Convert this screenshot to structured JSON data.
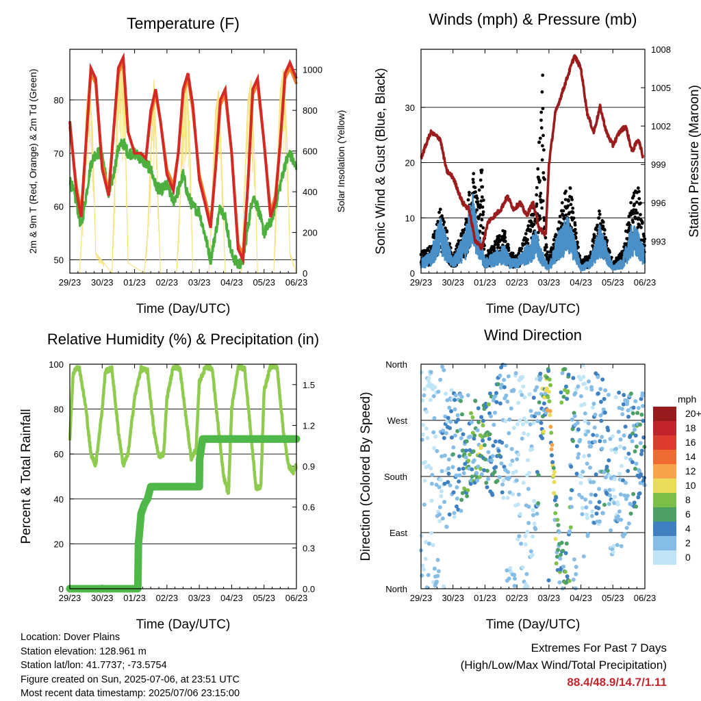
{
  "info": {
    "location": "Location: Dover Plains",
    "elevation": "Station elevation: 128.961 m",
    "latlon": "Station lat/lon: 41.7737; -73.5754",
    "created": "Figure created on Sun, 2025-07-06, at 23:51 UTC",
    "recent": "Most recent data timestamp: 2025/07/06 23:15:00"
  },
  "extremes": {
    "line1": "Extremes For Past 7 Days",
    "line2": "(High/Low/Max Wind/Total Precipitation)",
    "values": "88.4/48.9/14.7/1.11"
  },
  "colors": {
    "temp2m": "#d42a25",
    "temp9m": "#ee7f2a",
    "dewpoint": "#4caf3e",
    "solar": "#f5e17a",
    "gust": "#000000",
    "wind": "#4a90c8",
    "pressure": "#9b1c1c",
    "rh": "#8fcb4e",
    "precip": "#4fb848"
  },
  "chart_data": [
    {
      "type": "line",
      "title": "Temperature (F)",
      "xlabel": "Time (Day/UTC)",
      "ylabel": "2m & 9m T (Red, Orange) & 2m Td (Green)",
      "ylabel_right": "Solar Insolation (Yellow)",
      "x_ticks": [
        "29/23",
        "30/23",
        "01/23",
        "02/23",
        "03/23",
        "04/23",
        "05/23",
        "06/23"
      ],
      "ylim": [
        47.5,
        89.5
      ],
      "yticks": [
        50,
        60,
        70,
        80
      ],
      "ylim_right": [
        0,
        1100
      ],
      "yticks_right": [
        0,
        200,
        400,
        600,
        800,
        1000
      ],
      "series": [
        {
          "name": "2m T",
          "axis": "left",
          "x": [
            0,
            0.2,
            0.35,
            0.5,
            0.65,
            0.8,
            1,
            1.2,
            1.35,
            1.5,
            1.65,
            1.8,
            2,
            2.2,
            2.35,
            2.5,
            2.65,
            2.8,
            3,
            3.2,
            3.35,
            3.5,
            3.65,
            3.8,
            4,
            4.2,
            4.35,
            4.5,
            4.65,
            4.8,
            5,
            5.2,
            5.35,
            5.5,
            5.65,
            5.8,
            6,
            6.2,
            6.35,
            6.5,
            6.65,
            6.8,
            7
          ],
          "values": [
            76,
            63,
            58,
            72,
            86,
            84,
            67,
            62,
            74,
            86,
            88,
            74,
            70,
            70,
            69,
            78,
            82,
            76,
            66,
            63,
            70,
            82,
            85,
            79,
            65,
            60,
            56,
            67,
            80,
            82,
            70,
            52,
            50,
            64,
            82,
            84,
            72,
            58,
            61,
            72,
            85,
            87,
            84
          ]
        },
        {
          "name": "9m T",
          "axis": "left",
          "x": [
            0,
            0.2,
            0.35,
            0.5,
            0.65,
            0.8,
            1,
            1.2,
            1.35,
            1.5,
            1.65,
            1.8,
            2,
            2.2,
            2.35,
            2.5,
            2.65,
            2.8,
            3,
            3.2,
            3.35,
            3.5,
            3.65,
            3.8,
            4,
            4.2,
            4.35,
            4.5,
            4.65,
            4.8,
            5,
            5.2,
            5.35,
            5.5,
            5.65,
            5.8,
            6,
            6.2,
            6.35,
            6.5,
            6.65,
            6.8,
            7
          ],
          "values": [
            75,
            64,
            59,
            72,
            85,
            83,
            68,
            63,
            74,
            85,
            87,
            74,
            70,
            70,
            69,
            77,
            81,
            76,
            67,
            64,
            70,
            81,
            84,
            78,
            66,
            61,
            57,
            67,
            79,
            81,
            70,
            53,
            51,
            64,
            81,
            83,
            72,
            59,
            62,
            72,
            84,
            86,
            83
          ]
        },
        {
          "name": "2m Td",
          "axis": "left",
          "x": [
            0,
            0.2,
            0.35,
            0.5,
            0.65,
            0.8,
            1,
            1.2,
            1.35,
            1.5,
            1.65,
            1.8,
            2,
            2.2,
            2.35,
            2.5,
            2.65,
            2.8,
            3,
            3.2,
            3.35,
            3.5,
            3.65,
            3.8,
            4,
            4.2,
            4.35,
            4.5,
            4.65,
            4.8,
            5,
            5.2,
            5.35,
            5.5,
            5.65,
            5.8,
            6,
            6.2,
            6.35,
            6.5,
            6.65,
            6.8,
            7
          ],
          "values": [
            65,
            61,
            56,
            62,
            68,
            70,
            70,
            62,
            66,
            71,
            72,
            70,
            70,
            69,
            68,
            67,
            64,
            63,
            64,
            61,
            63,
            66,
            62,
            60,
            59,
            54,
            50,
            55,
            60,
            58,
            51,
            49,
            50,
            56,
            62,
            60,
            55,
            57,
            60,
            64,
            68,
            70,
            67
          ]
        },
        {
          "name": "Solar",
          "axis": "right",
          "x": [
            0,
            0.3,
            0.4,
            0.5,
            0.6,
            0.7,
            0.8,
            1.3,
            1.4,
            1.5,
            1.6,
            1.7,
            1.8,
            2.3,
            2.4,
            2.5,
            2.6,
            2.7,
            2.8,
            3.3,
            3.4,
            3.5,
            3.6,
            3.7,
            3.8,
            4.3,
            4.4,
            4.5,
            4.6,
            4.7,
            4.8,
            5.3,
            5.4,
            5.5,
            5.6,
            5.7,
            5.8,
            6.3,
            6.4,
            6.5,
            6.6,
            6.7,
            6.8,
            7
          ],
          "values": [
            0,
            0,
            300,
            800,
            950,
            700,
            100,
            0,
            500,
            1000,
            1030,
            800,
            50,
            0,
            200,
            600,
            950,
            500,
            0,
            0,
            350,
            850,
            960,
            700,
            0,
            0,
            400,
            800,
            900,
            500,
            0,
            0,
            450,
            850,
            950,
            600,
            0,
            0,
            500,
            900,
            1000,
            700,
            100,
            0
          ]
        }
      ]
    },
    {
      "type": "scatter",
      "title": "Winds (mph) & Pressure (mb)",
      "xlabel": "Time (Day/UTC)",
      "ylabel": "Sonic Wind & Gust (Blue, Black)",
      "ylabel_right": "Station Pressure (Maroon)",
      "x_ticks": [
        "29/23",
        "30/23",
        "01/23",
        "02/23",
        "03/23",
        "04/23",
        "05/23",
        "06/23"
      ],
      "ylim": [
        0,
        40.5
      ],
      "yticks": [
        0,
        10,
        20,
        30
      ],
      "ylim_right": [
        990.5,
        1008
      ],
      "yticks_right": [
        993,
        996,
        999,
        1002,
        1005,
        1008
      ],
      "series": [
        {
          "name": "Wind",
          "axis": "left",
          "x": [
            0,
            0.3,
            0.6,
            0.8,
            1.0,
            1.4,
            1.6,
            1.8,
            2.0,
            2.3,
            2.6,
            2.8,
            3.0,
            3.3,
            3.6,
            3.8,
            4.0,
            4.3,
            4.6,
            4.8,
            5.0,
            5.3,
            5.6,
            5.8,
            6.0,
            6.3,
            6.6,
            6.8,
            7
          ],
          "values": [
            2,
            3,
            8,
            5,
            2,
            6,
            12,
            6,
            2,
            3,
            4,
            2,
            2,
            4,
            6,
            3,
            1,
            6,
            8,
            5,
            1,
            2,
            7,
            4,
            1,
            2,
            7,
            6,
            3
          ]
        },
        {
          "name": "Gust",
          "axis": "left",
          "x": [
            0,
            0.3,
            0.6,
            0.8,
            1.0,
            1.4,
            1.6,
            1.8,
            1.9,
            2.0,
            2.3,
            2.6,
            2.8,
            3.0,
            3.3,
            3.6,
            3.8,
            3.9,
            4.0,
            4.3,
            4.6,
            4.8,
            5.0,
            5.3,
            5.6,
            5.8,
            6.0,
            6.3,
            6.6,
            6.8,
            7
          ],
          "values": [
            4,
            5,
            12,
            8,
            3,
            10,
            20,
            12,
            27,
            3,
            6,
            8,
            4,
            3,
            8,
            13,
            38,
            6,
            3,
            9,
            19,
            10,
            2,
            4,
            12,
            7,
            2,
            4,
            14,
            16,
            6
          ]
        },
        {
          "name": "Pressure",
          "axis": "right",
          "x": [
            0,
            0.3,
            0.6,
            0.8,
            1.0,
            1.3,
            1.5,
            1.7,
            1.9,
            2.1,
            2.3,
            2.5,
            2.7,
            2.9,
            3.1,
            3.3,
            3.5,
            3.7,
            3.9,
            4.0,
            4.2,
            4.4,
            4.6,
            4.8,
            5.0,
            5.2,
            5.4,
            5.6,
            5.8,
            6.0,
            6.2,
            6.4,
            6.6,
            6.8,
            6.95
          ],
          "values": [
            999.5,
            1001.5,
            1001.0,
            998.5,
            998.0,
            996.0,
            995.5,
            993.0,
            992.5,
            994.5,
            995.0,
            995.5,
            996.5,
            995.5,
            996.0,
            995.0,
            996.0,
            994.0,
            993.5,
            999.0,
            1003.0,
            1004.5,
            1006.0,
            1007.5,
            1006.5,
            1003.0,
            1001.5,
            1003.5,
            1001.5,
            1000.5,
            1001.5,
            1002.0,
            1000.0,
            1001.0,
            999.5
          ]
        }
      ]
    },
    {
      "type": "line",
      "title": "Relative Humidity (%) & Precipitation (in)",
      "xlabel": "Time (Day/UTC)",
      "ylabel": "Percent & Total Rainfall",
      "x_ticks": [
        "29/23",
        "30/23",
        "01/23",
        "02/23",
        "03/23",
        "04/23",
        "05/23",
        "06/23"
      ],
      "ylim": [
        0,
        100
      ],
      "yticks": [
        0,
        20,
        40,
        60,
        80,
        100
      ],
      "ylim_right": [
        0,
        1.65
      ],
      "yticks_right": [
        0.0,
        0.3,
        0.6,
        0.9,
        1.2,
        1.5
      ],
      "ytick_labels_right": [
        "0.0",
        "0.3",
        "0.6",
        "0.9",
        "1.2",
        "1.5"
      ],
      "series": [
        {
          "name": "RH",
          "axis": "left",
          "x": [
            0,
            0.1,
            0.2,
            0.3,
            0.5,
            0.65,
            0.8,
            1.0,
            1.1,
            1.3,
            1.5,
            1.65,
            1.8,
            2.0,
            2.2,
            2.4,
            2.6,
            2.75,
            2.9,
            3.0,
            3.2,
            3.4,
            3.6,
            3.75,
            3.9,
            4.0,
            4.2,
            4.4,
            4.6,
            4.75,
            4.9,
            5.0,
            5.2,
            5.4,
            5.6,
            5.75,
            5.9,
            6.0,
            6.2,
            6.4,
            6.6,
            6.75,
            6.9,
            7
          ],
          "values": [
            67,
            95,
            99,
            98,
            80,
            60,
            55,
            80,
            97,
            98,
            70,
            55,
            60,
            85,
            98,
            97,
            70,
            59,
            60,
            85,
            99,
            98,
            75,
            58,
            62,
            92,
            99,
            98,
            70,
            50,
            42,
            80,
            99,
            98,
            68,
            45,
            45,
            88,
            99,
            99,
            70,
            55,
            52,
            55
          ]
        },
        {
          "name": "Precip",
          "axis": "right",
          "x": [
            0,
            2.1,
            2.12,
            2.2,
            2.3,
            2.4,
            2.5,
            2.6,
            2.7,
            4.0,
            4.01,
            4.1,
            7
          ],
          "values": [
            0,
            0,
            0.33,
            0.55,
            0.62,
            0.66,
            0.75,
            0.75,
            0.75,
            0.75,
            0.95,
            1.1,
            1.1
          ]
        }
      ]
    },
    {
      "type": "scatter",
      "title": "Wind Direction",
      "xlabel": "Time (Day/UTC)",
      "ylabel": "Direction (Colored By Speed)",
      "x_ticks": [
        "29/23",
        "30/23",
        "01/23",
        "02/23",
        "03/23",
        "04/23",
        "05/23",
        "06/23"
      ],
      "y_ticks": [
        "North",
        "East",
        "South",
        "West",
        "North"
      ],
      "legend_title": "mph",
      "legend_labels": [
        "20+",
        "18",
        "16",
        "14",
        "12",
        "10",
        "8",
        "6",
        "4",
        "2",
        "0"
      ],
      "legend_colors": [
        "#951b1c",
        "#c1242a",
        "#df3a2f",
        "#ef6b2f",
        "#f6a34a",
        "#e8dc58",
        "#7cc04a",
        "#4ca067",
        "#3f80c0",
        "#85bde6",
        "#bfe5f7"
      ],
      "series": [
        {
          "name": "Direction",
          "x": [
            0.3,
            0.9,
            1.6,
            1.9,
            2.8,
            3.3,
            3.6,
            3.8,
            4.0,
            4.3,
            4.6,
            4.8,
            5.0,
            5.8,
            6.0,
            6.8
          ],
          "values": [
            300,
            200,
            240,
            230,
            260,
            150,
            230,
            280,
            340,
            20,
            10,
            350,
            200,
            230,
            180,
            230
          ],
          "speed": [
            2,
            5,
            8,
            9,
            3,
            2,
            4,
            9,
            13,
            7,
            8,
            7,
            2,
            6,
            3,
            7
          ]
        }
      ]
    }
  ]
}
